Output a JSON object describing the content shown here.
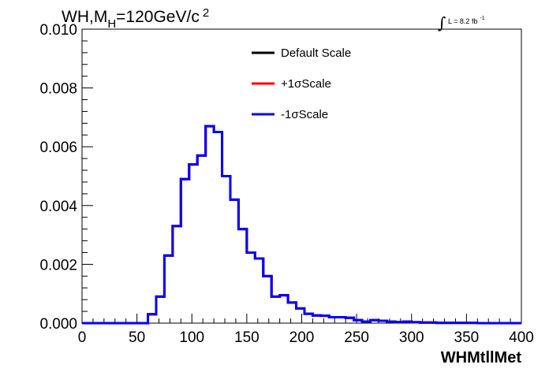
{
  "chart_data": {
    "type": "histogram",
    "title": {
      "main": "WH,M",
      "sub": "H",
      "rest": "=120GeV/c",
      "sup": "2"
    },
    "lumi": {
      "integral": "∫",
      "text": "L = 8.2 fb",
      "sup": "-1"
    },
    "xlabel": "WHMtllMet",
    "ylabel": "",
    "xlim": [
      0,
      400
    ],
    "ylim": [
      0,
      0.01
    ],
    "x_ticks": [
      "0",
      "50",
      "100",
      "150",
      "200",
      "250",
      "300",
      "350",
      "400"
    ],
    "x_tick_values": [
      0,
      50,
      100,
      150,
      200,
      250,
      300,
      350,
      400
    ],
    "y_ticks": [
      "0.000",
      "0.002",
      "0.004",
      "0.006",
      "0.008",
      "0.010"
    ],
    "y_tick_values": [
      0,
      0.002,
      0.004,
      0.006,
      0.008,
      0.01
    ],
    "legend_position": "top-center",
    "grid": false,
    "bin_edges": [
      0,
      7.5,
      15,
      22.5,
      30,
      37.5,
      45,
      52.5,
      60,
      67.5,
      75,
      82.5,
      90,
      97.5,
      105,
      112.5,
      120,
      127.5,
      135,
      142.5,
      150,
      157.5,
      165,
      172.5,
      180,
      187.5,
      195,
      202.5,
      210,
      217.5,
      225,
      232.5,
      240,
      247.5,
      255,
      262.5,
      270,
      277.5,
      285,
      292.5,
      300,
      307.5,
      315,
      322.5,
      330,
      337.5,
      345,
      352.5,
      360,
      367.5,
      375,
      382.5,
      390,
      397.5,
      400
    ],
    "series": [
      {
        "name": "Default Scale",
        "color": "#000000",
        "values": [
          0,
          0,
          0,
          0,
          0,
          0,
          0,
          0,
          0.0003,
          0.0009,
          0.0023,
          0.0033,
          0.0049,
          0.0054,
          0.0057,
          0.0067,
          0.0065,
          0.005,
          0.0042,
          0.0032,
          0.0024,
          0.0022,
          0.0016,
          0.0009,
          0.00095,
          0.0007,
          0.0005,
          0.00032,
          0.00026,
          0.00025,
          0.0002,
          0.0002,
          0.00018,
          0.0001,
          5e-05,
          0.0001,
          8e-05,
          5e-05,
          4e-05,
          5e-05,
          3e-05,
          2e-05,
          2e-05,
          1e-05,
          1e-05,
          1e-05,
          1e-05,
          1e-05,
          0,
          0,
          0,
          0,
          0,
          0
        ]
      },
      {
        "name": "+1σScale",
        "color": "#ff0000",
        "values": [
          0,
          0,
          0,
          0,
          0,
          0,
          0,
          0,
          0.0003,
          0.0009,
          0.0023,
          0.0033,
          0.0049,
          0.0054,
          0.0057,
          0.0067,
          0.0065,
          0.005,
          0.0042,
          0.0032,
          0.0024,
          0.0022,
          0.0016,
          0.0009,
          0.00095,
          0.0007,
          0.0005,
          0.00032,
          0.00026,
          0.00025,
          0.0002,
          0.0002,
          0.00018,
          0.0001,
          5e-05,
          0.0001,
          8e-05,
          5e-05,
          4e-05,
          5e-05,
          3e-05,
          2e-05,
          2e-05,
          1e-05,
          1e-05,
          1e-05,
          1e-05,
          1e-05,
          0,
          0,
          0,
          0,
          0,
          0
        ]
      },
      {
        "name": "-1σScale",
        "color": "#0000ff",
        "values": [
          0,
          0,
          0,
          0,
          0,
          0,
          0,
          0,
          0.0003,
          0.0009,
          0.0023,
          0.0033,
          0.0049,
          0.0054,
          0.0057,
          0.0067,
          0.0065,
          0.005,
          0.0042,
          0.0032,
          0.0024,
          0.0022,
          0.0016,
          0.0009,
          0.00095,
          0.0007,
          0.0005,
          0.00032,
          0.00026,
          0.00025,
          0.0002,
          0.0002,
          0.00018,
          0.0001,
          5e-05,
          0.0001,
          8e-05,
          5e-05,
          4e-05,
          5e-05,
          3e-05,
          2e-05,
          2e-05,
          1e-05,
          1e-05,
          1e-05,
          1e-05,
          1e-05,
          0,
          0,
          0,
          0,
          0,
          0
        ]
      }
    ]
  }
}
